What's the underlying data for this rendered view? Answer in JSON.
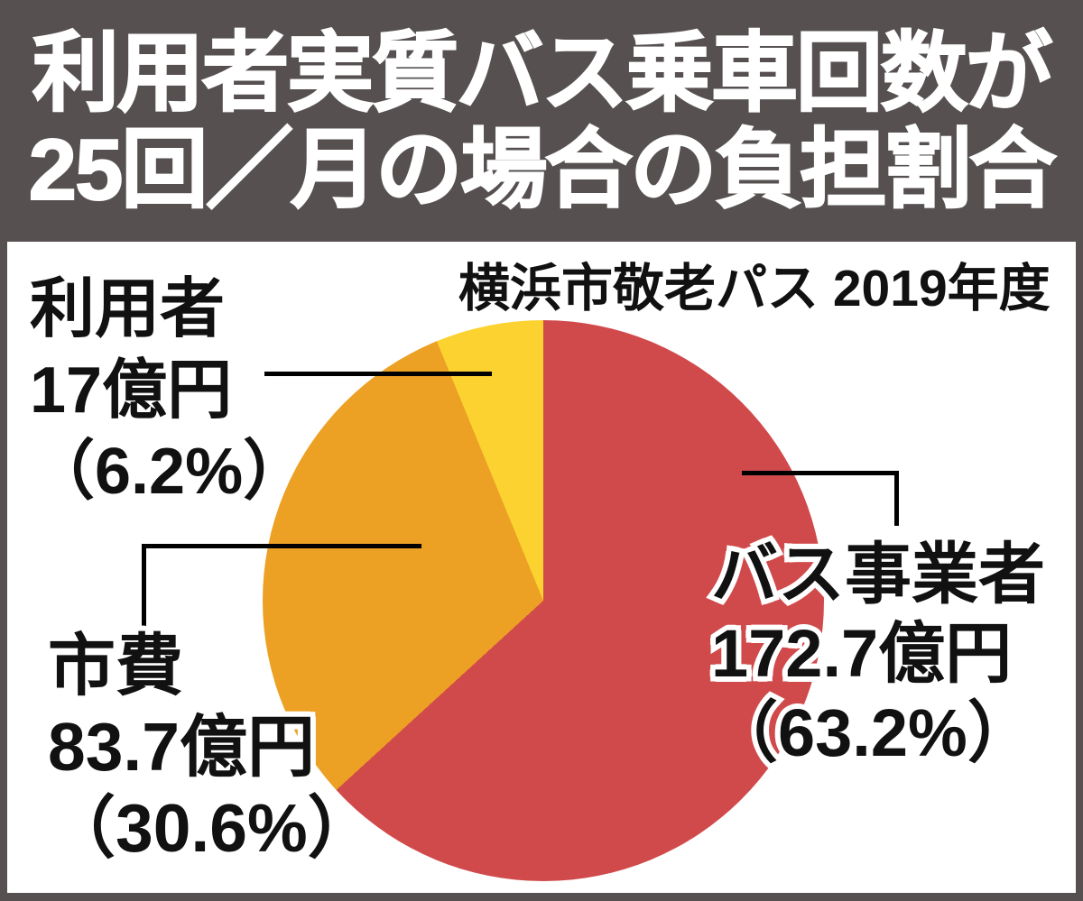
{
  "header": {
    "title_line1": "利用者実質バス乗車回数が",
    "title_line2": "25回／月の場合の負担割合"
  },
  "chart": {
    "subtitle": "横浜市敬老パス 2019年度"
  },
  "labels": {
    "users": {
      "name": "利用者",
      "amount": "17億円",
      "percent": "（6.2%）"
    },
    "city": {
      "name": "市費",
      "amount": "83.7億円",
      "percent": "（30.6%）"
    },
    "bus": {
      "name": "バス事業者",
      "amount": "172.7億円",
      "percent": "（63.2%）"
    }
  },
  "chart_data": {
    "type": "pie",
    "title": "利用者実質バス乗車回数が25回／月の場合の負担割合",
    "subtitle": "横浜市敬老パス 2019年度",
    "unit": "億円",
    "slices": [
      {
        "label": "バス事業者",
        "value": 172.7,
        "value_label": "172.7億円",
        "percent": 63.2,
        "color": "#d14a4b"
      },
      {
        "label": "市費",
        "value": 83.7,
        "value_label": "83.7億円",
        "percent": 30.6,
        "color": "#eca024"
      },
      {
        "label": "利用者",
        "value": 17.0,
        "value_label": "17億円",
        "percent": 6.2,
        "color": "#fcd230"
      }
    ],
    "start_angle_deg": 0,
    "direction": "clockwise",
    "legend": "none",
    "grid": false
  },
  "colors": {
    "frame": "#565150",
    "panel": "#ffffff",
    "text": "#111111",
    "callout_line": "#000000"
  }
}
